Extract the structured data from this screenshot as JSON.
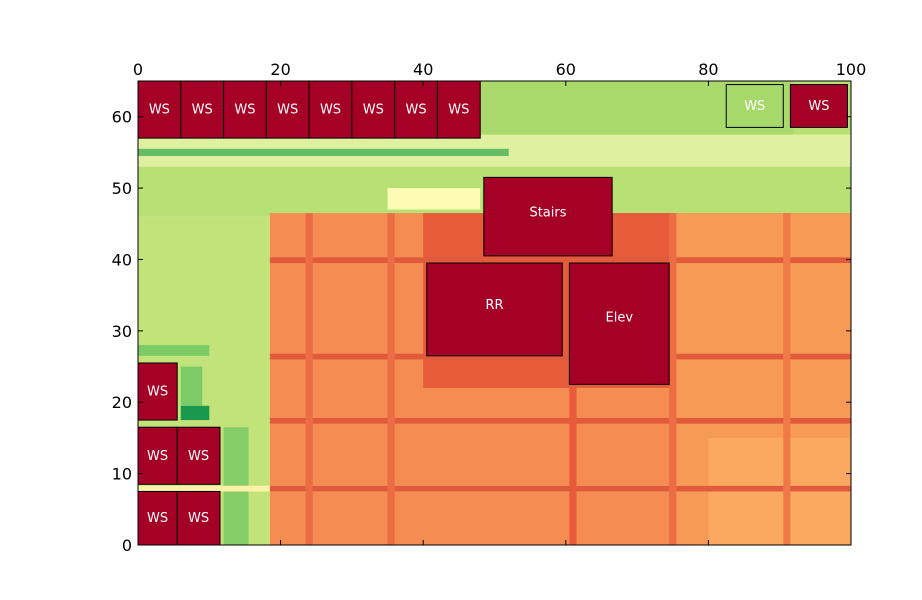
{
  "chart_data": {
    "type": "heatmap",
    "title": "",
    "xlabel": "",
    "ylabel": "",
    "xlim": [
      0,
      100
    ],
    "ylim": [
      0,
      65
    ],
    "x_ticks": [
      0,
      20,
      40,
      60,
      80,
      100
    ],
    "y_ticks": [
      0,
      10,
      20,
      30,
      40,
      50,
      60
    ],
    "x_axis_position": "top",
    "grid": false,
    "colormap": "RdYlGn (red = high, green = low)",
    "heat_regions": [
      {
        "name": "upper-band",
        "x": [
          0,
          100
        ],
        "y": [
          46,
          65
        ],
        "color": "#b7e075"
      },
      {
        "name": "left-column",
        "x": [
          0,
          18.5
        ],
        "y": [
          0,
          46
        ],
        "color": "#c2e379"
      },
      {
        "name": "main-floor",
        "x": [
          18.5,
          100
        ],
        "y": [
          0,
          46.5
        ],
        "color": "#f58d52"
      },
      {
        "name": "hot-core",
        "x": [
          40,
          75
        ],
        "y": [
          22,
          46.5
        ],
        "color": "#e75b3a"
      },
      {
        "name": "warm-right",
        "x": [
          75,
          100
        ],
        "y": [
          0,
          46.5
        ],
        "color": "#f79a56"
      },
      {
        "name": "warm-corner",
        "x": [
          80,
          100
        ],
        "y": [
          0,
          15
        ],
        "color": "#fba860"
      },
      {
        "name": "light-strip",
        "x": [
          0,
          100
        ],
        "y": [
          53,
          57.5
        ],
        "color": "#dff0a0"
      },
      {
        "name": "pale-patch",
        "x": [
          35,
          48
        ],
        "y": [
          47,
          50
        ],
        "color": "#fefbb4"
      },
      {
        "name": "top-green-area",
        "x": [
          48,
          92
        ],
        "y": [
          57.5,
          65
        ],
        "color": "#a9da6b"
      },
      {
        "name": "dark-green-spot",
        "x": [
          6,
          10
        ],
        "y": [
          17.5,
          19.5
        ],
        "color": "#1a9850"
      },
      {
        "name": "green-block",
        "x": [
          6,
          9
        ],
        "y": [
          19.5,
          25
        ],
        "color": "#7ccb66"
      },
      {
        "name": "green-bar",
        "x": [
          0,
          10
        ],
        "y": [
          26.5,
          28
        ],
        "color": "#7ccb66"
      },
      {
        "name": "green-column",
        "x": [
          12,
          15.5
        ],
        "y": [
          0,
          16.5
        ],
        "color": "#86cf68"
      },
      {
        "name": "green-strip-55",
        "x": [
          0,
          52
        ],
        "y": [
          54.5,
          55.5
        ],
        "color": "#66bd63"
      },
      {
        "name": "yellow-band-8",
        "x": [
          0,
          100
        ],
        "y": [
          7.5,
          8.3
        ],
        "color": "#fef1a8"
      },
      {
        "name": "red-line-8",
        "x": [
          18.5,
          100
        ],
        "y": [
          7.5,
          8.3
        ],
        "color": "#e05a3b"
      },
      {
        "name": "red-line-17",
        "x": [
          18.5,
          100
        ],
        "y": [
          17,
          17.8
        ],
        "color": "#e05a3b"
      },
      {
        "name": "red-line-26",
        "x": [
          18.5,
          100
        ],
        "y": [
          26,
          26.8
        ],
        "color": "#e05a3b"
      },
      {
        "name": "red-line-40",
        "x": [
          18.5,
          100
        ],
        "y": [
          39.5,
          40.3
        ],
        "color": "#e05a3b"
      },
      {
        "name": "red-col-24",
        "x": [
          23.5,
          24.5
        ],
        "y": [
          0,
          46.5
        ],
        "color": "#ec6d44"
      },
      {
        "name": "red-col-35",
        "x": [
          35,
          36
        ],
        "y": [
          0,
          46.5
        ],
        "color": "#ec6d44"
      },
      {
        "name": "red-col-60",
        "x": [
          60.5,
          61.5
        ],
        "y": [
          0,
          46.5
        ],
        "color": "#e75b3a"
      },
      {
        "name": "red-col-75",
        "x": [
          74.5,
          75.5
        ],
        "y": [
          0,
          46.5
        ],
        "color": "#ec6d44"
      },
      {
        "name": "red-col-91",
        "x": [
          90.5,
          91.5
        ],
        "y": [
          0,
          46.5
        ],
        "color": "#ef7a48"
      }
    ],
    "obstacles": [
      {
        "label": "WS",
        "x": [
          0,
          6
        ],
        "y": [
          57,
          65
        ],
        "fill": "#a50026"
      },
      {
        "label": "WS",
        "x": [
          6,
          12
        ],
        "y": [
          57,
          65
        ],
        "fill": "#a50026"
      },
      {
        "label": "WS",
        "x": [
          12,
          18
        ],
        "y": [
          57,
          65
        ],
        "fill": "#a50026"
      },
      {
        "label": "WS",
        "x": [
          18,
          24
        ],
        "y": [
          57,
          65
        ],
        "fill": "#a50026"
      },
      {
        "label": "WS",
        "x": [
          24,
          30
        ],
        "y": [
          57,
          65
        ],
        "fill": "#a50026"
      },
      {
        "label": "WS",
        "x": [
          30,
          36
        ],
        "y": [
          57,
          65
        ],
        "fill": "#a50026"
      },
      {
        "label": "WS",
        "x": [
          36,
          42
        ],
        "y": [
          57,
          65
        ],
        "fill": "#a50026"
      },
      {
        "label": "WS",
        "x": [
          42,
          48
        ],
        "y": [
          57,
          65
        ],
        "fill": "#a50026"
      },
      {
        "label": "WS",
        "x": [
          82.5,
          90.5
        ],
        "y": [
          58.5,
          64.5
        ],
        "fill": "#a6d96a"
      },
      {
        "label": "WS",
        "x": [
          91.5,
          99.5
        ],
        "y": [
          58.5,
          64.5
        ],
        "fill": "#a50026"
      },
      {
        "label": "Stairs",
        "x": [
          48.5,
          66.5
        ],
        "y": [
          40.5,
          51.5
        ],
        "fill": "#a50026"
      },
      {
        "label": "RR",
        "x": [
          40.5,
          59.5
        ],
        "y": [
          26.5,
          39.5
        ],
        "fill": "#a50026"
      },
      {
        "label": "Elev",
        "x": [
          60.5,
          74.5
        ],
        "y": [
          22.5,
          39.5
        ],
        "fill": "#a50026"
      },
      {
        "label": "WS",
        "x": [
          0,
          5.5
        ],
        "y": [
          17.5,
          25.5
        ],
        "fill": "#a50026"
      },
      {
        "label": "WS",
        "x": [
          0,
          5.5
        ],
        "y": [
          8.5,
          16.5
        ],
        "fill": "#a50026"
      },
      {
        "label": "WS",
        "x": [
          5.5,
          11.5
        ],
        "y": [
          8.5,
          16.5
        ],
        "fill": "#a50026"
      },
      {
        "label": "WS",
        "x": [
          0,
          5.5
        ],
        "y": [
          0,
          7.5
        ],
        "fill": "#a50026"
      },
      {
        "label": "WS",
        "x": [
          5.5,
          11.5
        ],
        "y": [
          0,
          7.5
        ],
        "fill": "#a50026"
      }
    ]
  }
}
